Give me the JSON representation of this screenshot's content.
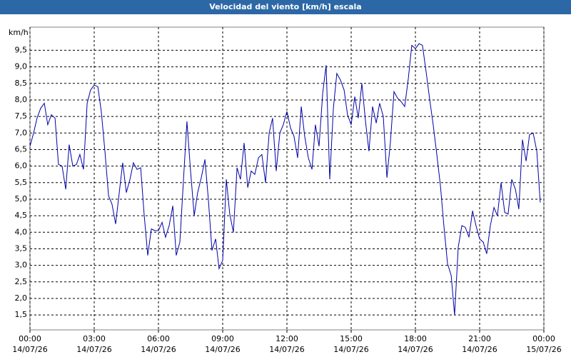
{
  "chart_data": {
    "type": "line",
    "title": "Velocidad del viento [km/h] escala",
    "y_label": "km/h",
    "x": [
      0,
      0.17,
      0.33,
      0.5,
      0.67,
      0.83,
      1,
      1.17,
      1.33,
      1.5,
      1.67,
      1.83,
      2,
      2.17,
      2.33,
      2.5,
      2.67,
      2.83,
      3,
      3.17,
      3.33,
      3.5,
      3.67,
      3.83,
      4,
      4.17,
      4.33,
      4.5,
      4.67,
      4.83,
      5,
      5.17,
      5.33,
      5.5,
      5.67,
      5.83,
      6,
      6.17,
      6.33,
      6.5,
      6.67,
      6.83,
      7,
      7.17,
      7.33,
      7.5,
      7.67,
      7.83,
      8,
      8.17,
      8.33,
      8.5,
      8.67,
      8.83,
      9,
      9.17,
      9.33,
      9.5,
      9.67,
      9.83,
      10,
      10.17,
      10.33,
      10.5,
      10.67,
      10.83,
      11,
      11.17,
      11.33,
      11.5,
      11.67,
      11.83,
      12,
      12.17,
      12.33,
      12.5,
      12.67,
      12.83,
      13,
      13.17,
      13.33,
      13.5,
      13.67,
      13.83,
      14,
      14.17,
      14.33,
      14.5,
      14.67,
      14.83,
      15,
      15.17,
      15.33,
      15.5,
      15.67,
      15.83,
      16,
      16.17,
      16.33,
      16.5,
      16.67,
      16.83,
      17,
      17.17,
      17.33,
      17.5,
      17.67,
      17.83,
      18,
      18.17,
      18.33,
      18.5,
      18.67,
      18.83,
      19,
      19.17,
      19.33,
      19.5,
      19.67,
      19.83,
      20,
      20.17,
      20.33,
      20.5,
      20.67,
      20.83,
      21,
      21.17,
      21.33,
      21.5,
      21.67,
      21.83,
      22,
      22.17,
      22.33,
      22.5,
      22.67,
      22.83,
      23,
      23.17,
      23.33,
      23.5,
      23.67,
      23.83
    ],
    "series": [
      {
        "name": "Velocidad del viento",
        "color": "#0000a8",
        "values": [
          6.6,
          7.0,
          7.45,
          7.75,
          7.9,
          7.25,
          7.55,
          7.45,
          6.05,
          6.0,
          5.3,
          6.65,
          6.0,
          6.05,
          6.35,
          5.9,
          7.9,
          8.3,
          8.45,
          8.4,
          7.65,
          6.45,
          5.1,
          4.85,
          4.25,
          5.2,
          6.1,
          5.2,
          5.6,
          6.1,
          5.9,
          5.95,
          4.55,
          3.3,
          4.1,
          4.05,
          4.05,
          4.3,
          3.85,
          4.2,
          4.8,
          3.3,
          3.7,
          5.6,
          7.35,
          5.85,
          4.5,
          5.2,
          5.65,
          6.2,
          5.0,
          3.45,
          3.8,
          2.9,
          3.15,
          5.6,
          4.55,
          4.0,
          5.95,
          5.6,
          6.7,
          5.35,
          5.85,
          5.75,
          6.25,
          6.35,
          5.5,
          7.0,
          7.45,
          5.85,
          7.0,
          7.25,
          7.65,
          7.15,
          6.9,
          6.25,
          7.8,
          6.9,
          6.25,
          5.9,
          7.25,
          6.6,
          8.2,
          9.05,
          5.6,
          7.75,
          8.8,
          8.6,
          8.3,
          7.55,
          7.25,
          8.1,
          7.45,
          8.5,
          7.35,
          6.45,
          7.8,
          7.3,
          7.9,
          7.5,
          5.65,
          6.7,
          8.25,
          8.05,
          7.95,
          7.8,
          8.65,
          9.65,
          9.55,
          9.7,
          9.65,
          8.85,
          8.0,
          7.25,
          6.35,
          5.4,
          4.2,
          3.05,
          2.7,
          1.5,
          3.55,
          4.2,
          4.15,
          3.85,
          4.65,
          4.2,
          3.8,
          3.7,
          3.35,
          4.2,
          4.75,
          4.5,
          5.5,
          4.6,
          4.55,
          5.6,
          5.3,
          4.7,
          6.8,
          6.15,
          6.95,
          7.0,
          6.45,
          4.9
        ]
      }
    ],
    "xlim": [
      0,
      24
    ],
    "xticks": [
      {
        "value": 0,
        "label": "00:00",
        "date": "14/07/26"
      },
      {
        "value": 3,
        "label": "03:00",
        "date": "14/07/26"
      },
      {
        "value": 6,
        "label": "06:00",
        "date": "14/07/26"
      },
      {
        "value": 9,
        "label": "09:00",
        "date": "14/07/26"
      },
      {
        "value": 12,
        "label": "12:00",
        "date": "14/07/26"
      },
      {
        "value": 15,
        "label": "15:00",
        "date": "14/07/26"
      },
      {
        "value": 18,
        "label": "18:00",
        "date": "14/07/26"
      },
      {
        "value": 21,
        "label": "21:00",
        "date": "14/07/26"
      },
      {
        "value": 24,
        "label": "00:00",
        "date": "15/07/26"
      }
    ],
    "ylim": [
      1.05,
      10.2
    ],
    "yticks": [
      {
        "value": 1.5,
        "label": "1,5"
      },
      {
        "value": 2,
        "label": "2,0"
      },
      {
        "value": 2.5,
        "label": "2,5"
      },
      {
        "value": 3,
        "label": "3,0"
      },
      {
        "value": 3.5,
        "label": "3,5"
      },
      {
        "value": 4,
        "label": "4,0"
      },
      {
        "value": 4.5,
        "label": "4,5"
      },
      {
        "value": 5,
        "label": "5,0"
      },
      {
        "value": 5.5,
        "label": "5,5"
      },
      {
        "value": 6,
        "label": "6,0"
      },
      {
        "value": 6.5,
        "label": "6,5"
      },
      {
        "value": 7,
        "label": "7,0"
      },
      {
        "value": 7.5,
        "label": "7,5"
      },
      {
        "value": 8,
        "label": "8,0"
      },
      {
        "value": 8.5,
        "label": "8,5"
      },
      {
        "value": 9,
        "label": "9,0"
      },
      {
        "value": 9.5,
        "label": "9,5"
      }
    ],
    "grid": true
  }
}
